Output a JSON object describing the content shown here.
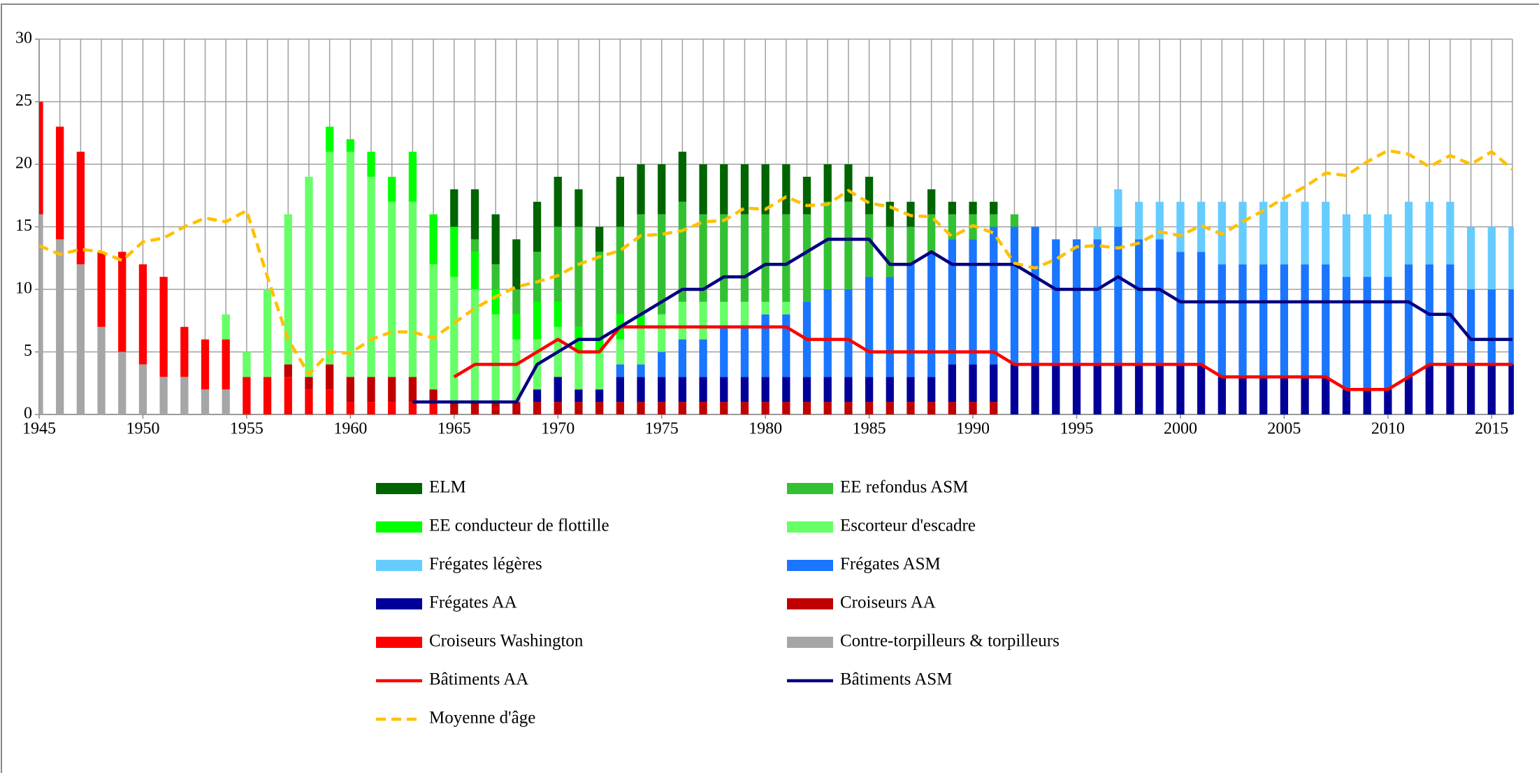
{
  "chart_data": {
    "type": "bar",
    "stacked": true,
    "grid": true,
    "x": [
      1945,
      1946,
      1947,
      1948,
      1949,
      1950,
      1951,
      1952,
      1953,
      1954,
      1955,
      1956,
      1957,
      1958,
      1959,
      1960,
      1961,
      1962,
      1963,
      1964,
      1965,
      1966,
      1967,
      1968,
      1969,
      1970,
      1971,
      1972,
      1973,
      1974,
      1975,
      1976,
      1977,
      1978,
      1979,
      1980,
      1981,
      1982,
      1983,
      1984,
      1985,
      1986,
      1987,
      1988,
      1989,
      1990,
      1991,
      1992,
      1993,
      1994,
      1995,
      1996,
      1997,
      1998,
      1999,
      2000,
      2001,
      2002,
      2003,
      2004,
      2005,
      2006,
      2007,
      2008,
      2009,
      2010,
      2011,
      2012,
      2013,
      2014,
      2015,
      2016
    ],
    "xlim": [
      1945,
      2016
    ],
    "xticks": [
      1945,
      1950,
      1955,
      1960,
      1965,
      1970,
      1975,
      1980,
      1985,
      1990,
      1995,
      2000,
      2005,
      2010,
      2015
    ],
    "ylim": [
      0,
      30
    ],
    "yticks": [
      0,
      5,
      10,
      15,
      20,
      25,
      30
    ],
    "series": [
      {
        "name": "ELM",
        "color": "#006400",
        "type": "bar",
        "values": [
          0,
          0,
          0,
          0,
          0,
          0,
          0,
          0,
          0,
          0,
          0,
          0,
          0,
          0,
          0,
          0,
          0,
          0,
          0,
          0,
          3,
          4,
          4,
          4,
          4,
          4,
          3,
          2,
          4,
          4,
          4,
          4,
          4,
          4,
          4,
          4,
          4,
          3,
          3,
          3,
          3,
          2,
          2,
          2,
          1,
          1,
          1,
          0,
          0,
          0,
          0,
          0,
          0,
          0,
          0,
          0,
          0,
          0,
          0,
          0,
          0,
          0,
          0,
          0,
          0,
          0,
          0,
          0,
          0,
          0,
          0,
          0
        ]
      },
      {
        "name": "EE refondus ASM",
        "color": "#33c133",
        "type": "bar",
        "values": [
          0,
          0,
          0,
          0,
          0,
          0,
          0,
          0,
          0,
          0,
          0,
          0,
          0,
          0,
          0,
          0,
          0,
          0,
          0,
          0,
          0,
          1,
          2,
          2,
          4,
          6,
          8,
          7,
          7,
          8,
          8,
          8,
          7,
          7,
          7,
          7,
          7,
          7,
          7,
          7,
          5,
          4,
          3,
          3,
          2,
          2,
          1,
          1,
          0,
          0,
          0,
          0,
          0,
          0,
          0,
          0,
          0,
          0,
          0,
          0,
          0,
          0,
          0,
          0,
          0,
          0,
          0,
          0,
          0,
          0,
          0,
          0
        ]
      },
      {
        "name": "EE conducteur de flottille",
        "color": "#00ff00",
        "type": "bar",
        "values": [
          0,
          0,
          0,
          0,
          0,
          0,
          0,
          0,
          0,
          0,
          0,
          0,
          0,
          0,
          2,
          1,
          2,
          2,
          4,
          4,
          4,
          3,
          2,
          2,
          3,
          2,
          2,
          1,
          2,
          1,
          0,
          0,
          0,
          0,
          0,
          0,
          0,
          0,
          0,
          0,
          0,
          0,
          0,
          0,
          0,
          0,
          0,
          0,
          0,
          0,
          0,
          0,
          0,
          0,
          0,
          0,
          0,
          0,
          0,
          0,
          0,
          0,
          0,
          0,
          0,
          0,
          0,
          0,
          0,
          0,
          0,
          0
        ]
      },
      {
        "name": "Escorteur d'escadre",
        "color": "#66ff66",
        "type": "bar",
        "values": [
          0,
          0,
          0,
          0,
          0,
          0,
          0,
          0,
          0,
          2,
          2,
          7,
          12,
          16,
          17,
          18,
          16,
          14,
          14,
          10,
          10,
          9,
          7,
          5,
          4,
          4,
          3,
          3,
          2,
          3,
          3,
          3,
          3,
          2,
          2,
          1,
          1,
          0,
          0,
          0,
          0,
          0,
          0,
          0,
          0,
          0,
          0,
          0,
          0,
          0,
          0,
          0,
          0,
          0,
          0,
          0,
          0,
          0,
          0,
          0,
          0,
          0,
          0,
          0,
          0,
          0,
          0,
          0,
          0,
          0,
          0,
          0
        ]
      },
      {
        "name": "Frégates légères",
        "color": "#66ccff",
        "type": "bar",
        "values": [
          0,
          0,
          0,
          0,
          0,
          0,
          0,
          0,
          0,
          0,
          0,
          0,
          0,
          0,
          0,
          0,
          0,
          0,
          0,
          0,
          0,
          0,
          0,
          0,
          0,
          0,
          0,
          0,
          0,
          0,
          0,
          0,
          0,
          0,
          0,
          0,
          0,
          0,
          0,
          0,
          0,
          0,
          0,
          0,
          0,
          0,
          0,
          0,
          0,
          0,
          0,
          1,
          3,
          3,
          3,
          4,
          4,
          5,
          5,
          5,
          5,
          5,
          5,
          5,
          5,
          5,
          5,
          5,
          5,
          5,
          5,
          5
        ]
      },
      {
        "name": "Frégates ASM",
        "color": "#1a75ff",
        "type": "bar",
        "values": [
          0,
          0,
          0,
          0,
          0,
          0,
          0,
          0,
          0,
          0,
          0,
          0,
          0,
          0,
          0,
          0,
          0,
          0,
          0,
          0,
          0,
          0,
          0,
          0,
          0,
          0,
          0,
          0,
          1,
          1,
          2,
          3,
          3,
          4,
          4,
          5,
          5,
          6,
          7,
          7,
          8,
          8,
          9,
          10,
          10,
          10,
          11,
          11,
          11,
          10,
          10,
          10,
          11,
          10,
          10,
          9,
          9,
          9,
          9,
          9,
          9,
          9,
          9,
          9,
          9,
          9,
          9,
          8,
          8,
          6,
          6,
          6
        ]
      },
      {
        "name": "Frégates AA",
        "color": "#000099",
        "type": "bar",
        "values": [
          0,
          0,
          0,
          0,
          0,
          0,
          0,
          0,
          0,
          0,
          0,
          0,
          0,
          0,
          0,
          0,
          0,
          0,
          0,
          0,
          0,
          0,
          0,
          0,
          1,
          2,
          1,
          1,
          2,
          2,
          2,
          2,
          2,
          2,
          2,
          2,
          2,
          2,
          2,
          2,
          2,
          2,
          2,
          2,
          3,
          3,
          3,
          4,
          4,
          4,
          4,
          4,
          4,
          4,
          4,
          4,
          4,
          3,
          3,
          3,
          3,
          3,
          3,
          2,
          2,
          2,
          3,
          4,
          4,
          4,
          4,
          4
        ]
      },
      {
        "name": "Croiseurs AA",
        "color": "#c00000",
        "type": "bar",
        "values": [
          0,
          0,
          0,
          0,
          0,
          0,
          0,
          0,
          0,
          0,
          0,
          0,
          1,
          1,
          2,
          2,
          2,
          2,
          2,
          1,
          1,
          1,
          1,
          1,
          1,
          1,
          1,
          1,
          1,
          1,
          1,
          1,
          1,
          1,
          1,
          1,
          1,
          1,
          1,
          1,
          1,
          1,
          1,
          1,
          1,
          1,
          1,
          0,
          0,
          0,
          0,
          0,
          0,
          0,
          0,
          0,
          0,
          0,
          0,
          0,
          0,
          0,
          0,
          0,
          0,
          0,
          0,
          0,
          0,
          0,
          0,
          0
        ]
      },
      {
        "name": "Croiseurs Washington",
        "color": "#ff0000",
        "type": "bar",
        "values": [
          9,
          9,
          9,
          6,
          8,
          8,
          8,
          4,
          4,
          4,
          3,
          3,
          3,
          2,
          2,
          1,
          1,
          1,
          1,
          1,
          0,
          0,
          0,
          0,
          0,
          0,
          0,
          0,
          0,
          0,
          0,
          0,
          0,
          0,
          0,
          0,
          0,
          0,
          0,
          0,
          0,
          0,
          0,
          0,
          0,
          0,
          0,
          0,
          0,
          0,
          0,
          0,
          0,
          0,
          0,
          0,
          0,
          0,
          0,
          0,
          0,
          0,
          0,
          0,
          0,
          0,
          0,
          0,
          0,
          0,
          0,
          0
        ]
      },
      {
        "name": "Contre-torpilleurs & torpilleurs",
        "color": "#a6a6a6",
        "type": "bar",
        "values": [
          16,
          14,
          12,
          7,
          5,
          4,
          3,
          3,
          2,
          2,
          0,
          0,
          0,
          0,
          0,
          0,
          0,
          0,
          0,
          0,
          0,
          0,
          0,
          0,
          0,
          0,
          0,
          0,
          0,
          0,
          0,
          0,
          0,
          0,
          0,
          0,
          0,
          0,
          0,
          0,
          0,
          0,
          0,
          0,
          0,
          0,
          0,
          0,
          0,
          0,
          0,
          0,
          0,
          0,
          0,
          0,
          0,
          0,
          0,
          0,
          0,
          0,
          0,
          0,
          0,
          0,
          0,
          0,
          0,
          0,
          0,
          0
        ]
      },
      {
        "name": "Bâtiments AA",
        "color": "#ff0000",
        "type": "line",
        "values": [
          null,
          null,
          null,
          null,
          null,
          null,
          null,
          null,
          null,
          null,
          null,
          null,
          null,
          null,
          null,
          null,
          null,
          null,
          null,
          null,
          3,
          4,
          4,
          4,
          5,
          6,
          5,
          5,
          7,
          7,
          7,
          7,
          7,
          7,
          7,
          7,
          7,
          6,
          6,
          6,
          5,
          5,
          5,
          5,
          5,
          5,
          5,
          4,
          4,
          4,
          4,
          4,
          4,
          4,
          4,
          4,
          4,
          3,
          3,
          3,
          3,
          3,
          3,
          2,
          2,
          2,
          3,
          4,
          4,
          4,
          4,
          4
        ]
      },
      {
        "name": "Bâtiments ASM",
        "color": "#000080",
        "type": "line",
        "values": [
          null,
          null,
          null,
          null,
          null,
          null,
          null,
          null,
          null,
          null,
          null,
          null,
          null,
          null,
          null,
          null,
          null,
          null,
          1,
          1,
          1,
          1,
          1,
          1,
          4,
          5,
          6,
          6,
          7,
          8,
          9,
          10,
          10,
          11,
          11,
          12,
          12,
          13,
          14,
          14,
          14,
          12,
          12,
          13,
          12,
          12,
          12,
          12,
          11,
          10,
          10,
          10,
          11,
          10,
          10,
          9,
          9,
          9,
          9,
          9,
          9,
          9,
          9,
          9,
          9,
          9,
          9,
          8,
          8,
          6,
          6,
          6
        ]
      },
      {
        "name": "Moyenne d'âge",
        "color": "#ffc000",
        "type": "line",
        "dashed": true,
        "values": [
          13.5,
          12.8,
          13.2,
          13,
          12.3,
          13.8,
          14.1,
          15,
          15.7,
          15.4,
          16.3,
          11,
          6,
          3.2,
          5,
          4.9,
          6,
          6.6,
          6.6,
          6.1,
          7.3,
          8.5,
          9.4,
          10.2,
          10.6,
          11.1,
          12,
          12.6,
          13.1,
          14.3,
          14.4,
          14.7,
          15.4,
          15.5,
          16.5,
          16.4,
          17.4,
          16.7,
          16.8,
          17.9,
          16.9,
          16.6,
          15.9,
          15.8,
          14.2,
          15.1,
          14.5,
          12.1,
          11.7,
          12.4,
          13.4,
          13.5,
          13.3,
          13.7,
          14.6,
          14.3,
          15.1,
          14.4,
          15.4,
          16.3,
          17.3,
          18.2,
          19.3,
          19.1,
          20.2,
          21.1,
          20.8,
          19.8,
          20.7,
          20,
          21,
          19.6
        ]
      }
    ]
  }
}
